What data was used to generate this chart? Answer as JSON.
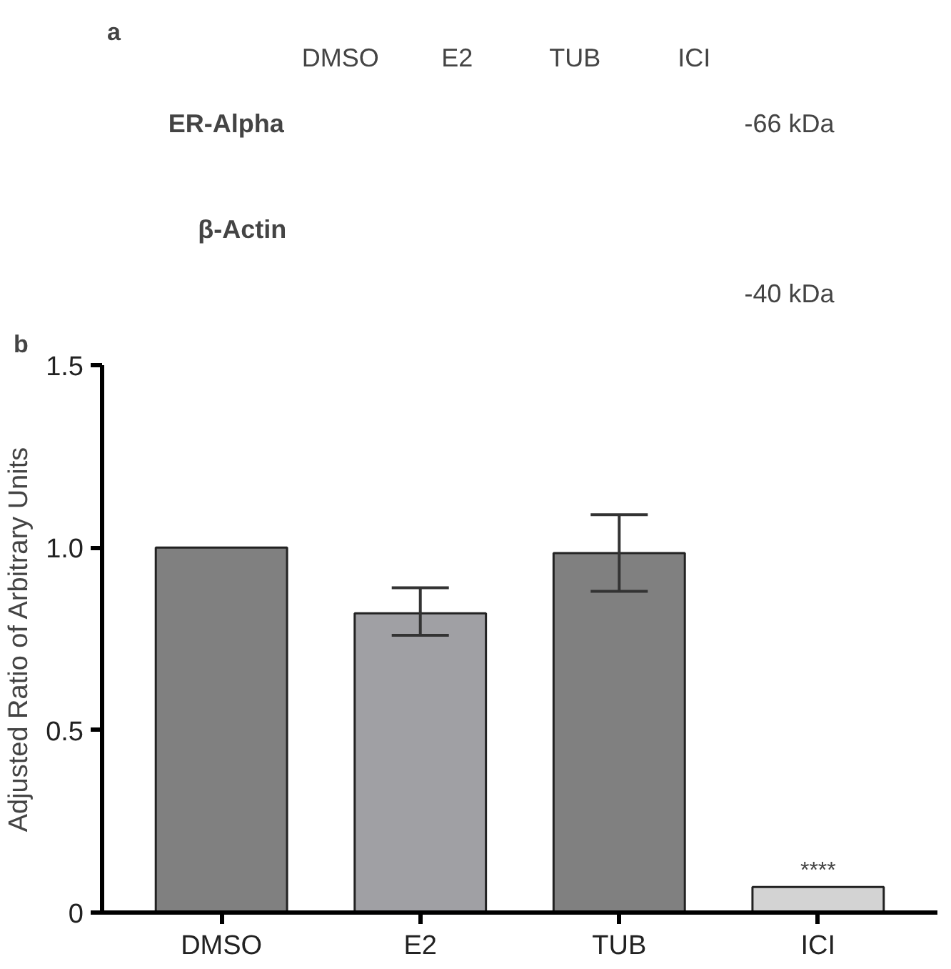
{
  "chart_data": [
    {
      "type": "other",
      "annotations": [
        "a",
        "DMSO",
        "E2",
        "TUB",
        "ICI",
        "ER-Alpha",
        "-66 kDa",
        "β-Actin",
        "-40 kDa"
      ]
    },
    {
      "type": "bar",
      "ylabel": "Adjusted Ratio of Arbitrary Units",
      "categories": [
        "DMSO",
        "E2",
        "TUB",
        "ICI"
      ],
      "values": [
        1.0,
        0.82,
        0.985,
        0.07
      ],
      "colors": [
        "#808080",
        "#a0a0a4",
        "#808080",
        "#d3d3d3"
      ],
      "errors": [
        null,
        [
          0.76,
          0.89
        ],
        [
          0.88,
          1.09
        ],
        null
      ],
      "ylim": [
        0,
        1.5
      ],
      "yticks": [
        0,
        {
          "value": 0.5,
          "label": "0.5"
        },
        {
          "value": 1,
          "label": "1.0"
        },
        {
          "value": 1.5,
          "label": "1.5"
        }
      ],
      "grid": false,
      "annotations": [
        "b",
        {
          "text": "****",
          "x": "ICI",
          "y": 0.08
        }
      ]
    }
  ]
}
